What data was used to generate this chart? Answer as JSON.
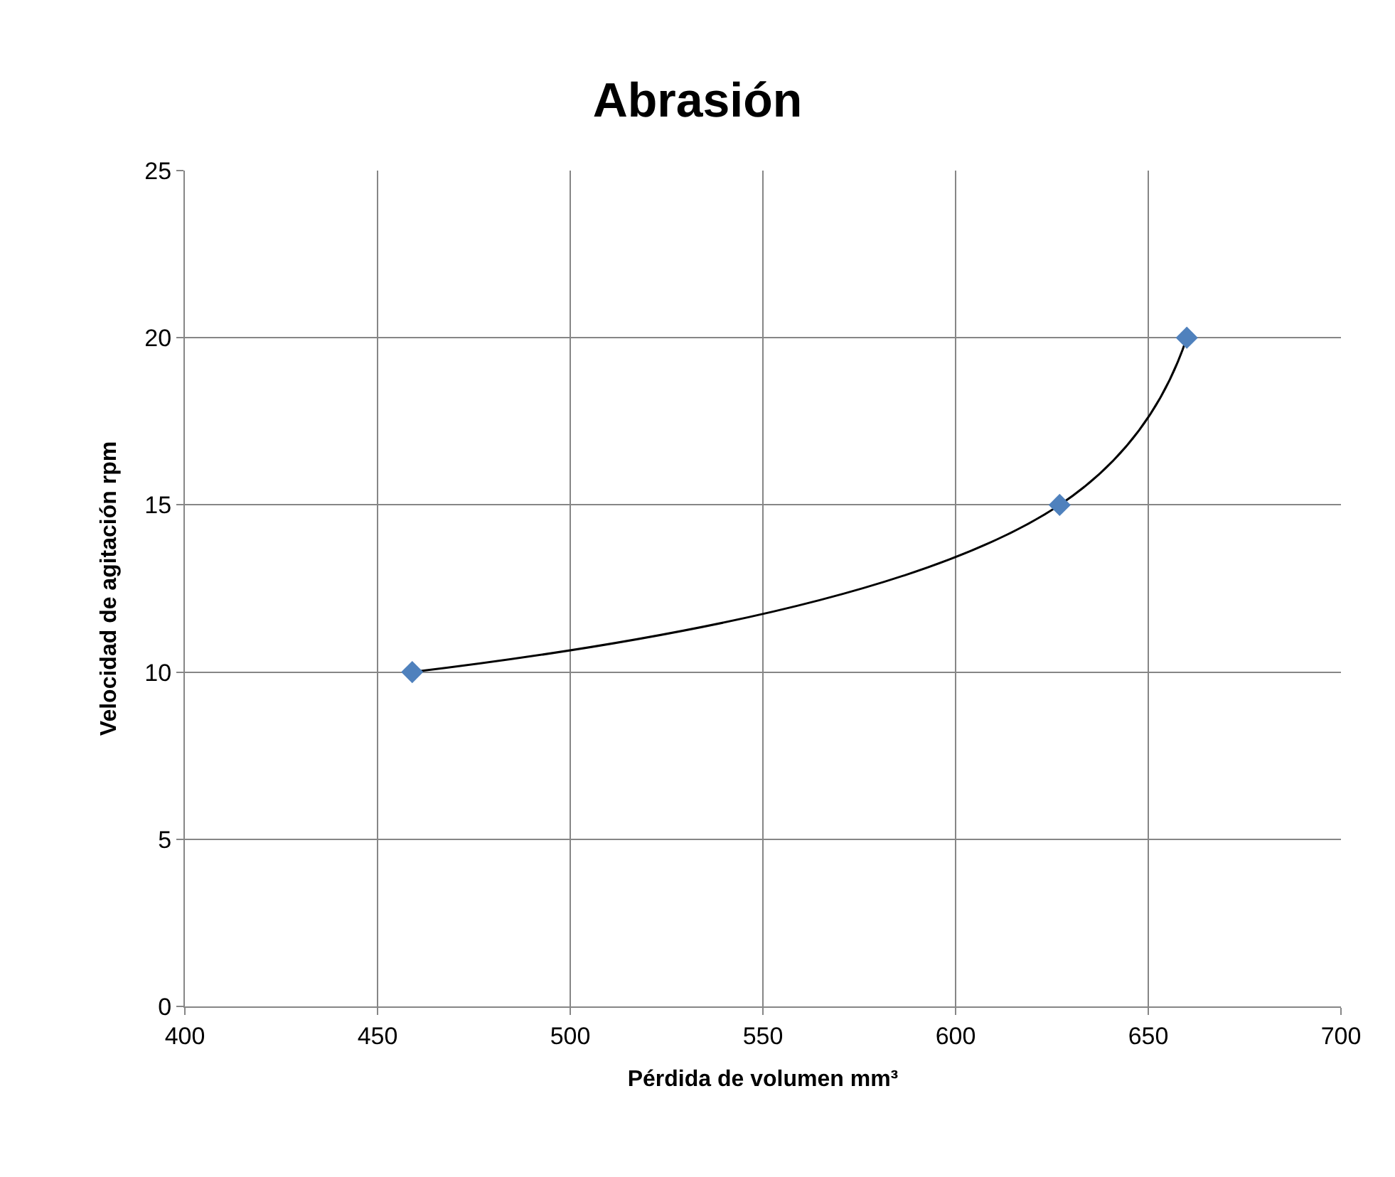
{
  "chart_data": {
    "type": "scatter",
    "title": "Abrasión",
    "xlabel": "Pérdida de volumen mm³",
    "ylabel": "Velocidad de agitación rpm",
    "series": [
      {
        "type": "line",
        "marker": "none",
        "color": "#000000",
        "x": [
          459,
          627,
          660
        ],
        "values": [
          10,
          15,
          20
        ]
      },
      {
        "color": "#4f81bd",
        "x": [
          459,
          627,
          660
        ],
        "values": [
          10,
          15,
          20
        ]
      }
    ],
    "xlim": [
      400,
      700
    ],
    "xticks": [
      400,
      450,
      500,
      550,
      600,
      650,
      700
    ],
    "ylim": [
      0,
      25
    ],
    "yticks": [
      0,
      5,
      10,
      15,
      20,
      25
    ],
    "grid": true,
    "marker": "diamond"
  }
}
